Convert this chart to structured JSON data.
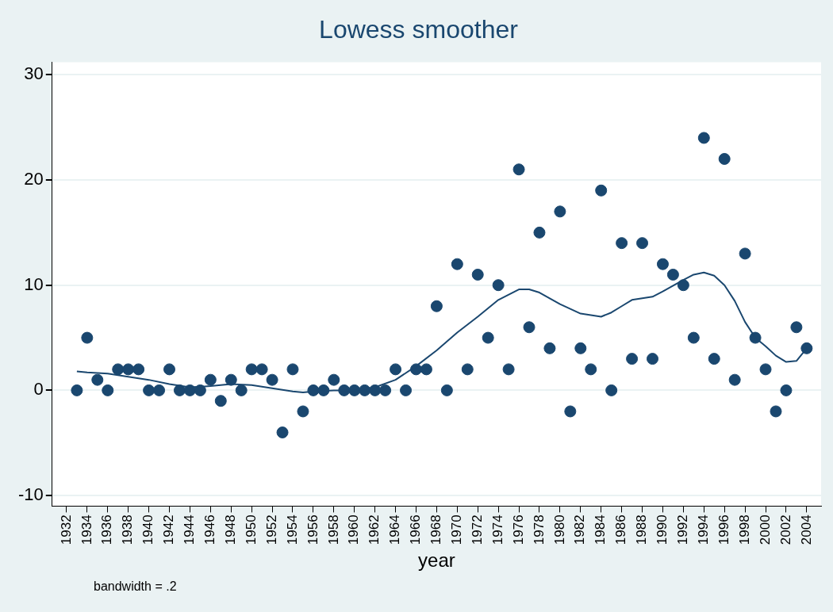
{
  "chart_data": {
    "type": "scatter",
    "title": "Lowess smoother",
    "xlabel": "year",
    "annotations": [
      "bandwidth = .2"
    ],
    "xlim": [
      1930.6,
      2005.4
    ],
    "xticks": [
      1932,
      1934,
      1936,
      1938,
      1940,
      1942,
      1944,
      1946,
      1948,
      1950,
      1952,
      1954,
      1956,
      1958,
      1960,
      1962,
      1964,
      1966,
      1968,
      1970,
      1972,
      1974,
      1976,
      1978,
      1980,
      1982,
      1984,
      1986,
      1988,
      1990,
      1992,
      1994,
      1996,
      1998,
      2000,
      2002,
      2004
    ],
    "ylim": [
      -11,
      31.2
    ],
    "yticks": [
      -10,
      0,
      10,
      20,
      30
    ],
    "grid": "y",
    "legend": false,
    "marker": "circle",
    "series": [
      {
        "color": "#1a476f",
        "x": [
          1933,
          1934,
          1935,
          1936,
          1937,
          1938,
          1939,
          1940,
          1941,
          1942,
          1943,
          1944,
          1945,
          1946,
          1947,
          1948,
          1949,
          1950,
          1951,
          1952,
          1953,
          1954,
          1955,
          1956,
          1957,
          1958,
          1959,
          1960,
          1961,
          1962,
          1963,
          1964,
          1965,
          1966,
          1967,
          1968,
          1969,
          1970,
          1971,
          1972,
          1973,
          1974,
          1975,
          1976,
          1977,
          1978,
          1979,
          1980,
          1981,
          1982,
          1983,
          1984,
          1985,
          1986,
          1987,
          1988,
          1989,
          1990,
          1991,
          1992,
          1993,
          1994,
          1995,
          1996,
          1997,
          1998,
          1999,
          2000,
          2001,
          2002,
          2003,
          2004
        ],
        "values": [
          0,
          5,
          1,
          0,
          2,
          2,
          2,
          0,
          0,
          2,
          0,
          0,
          0,
          1,
          -1,
          1,
          0,
          2,
          2,
          1,
          -4,
          2,
          -2,
          0,
          0,
          1,
          0,
          0,
          0,
          0,
          0,
          2,
          0,
          2,
          2,
          8,
          0,
          12,
          2,
          11,
          5,
          10,
          2,
          21,
          6,
          15,
          4,
          17,
          -2,
          4,
          2,
          19,
          0,
          14,
          3,
          14,
          3,
          12,
          11,
          10,
          5,
          24,
          3,
          22,
          1,
          13,
          5,
          2,
          -2,
          0,
          6,
          4
        ]
      },
      {
        "type": "line",
        "color": "#1a476f",
        "marker": "none",
        "x": [
          1933,
          1934,
          1936,
          1938,
          1940,
          1942,
          1944,
          1946,
          1948,
          1950,
          1952,
          1954,
          1955,
          1956,
          1958,
          1960,
          1962,
          1964,
          1966,
          1968,
          1970,
          1972,
          1974,
          1976,
          1977,
          1978,
          1980,
          1982,
          1984,
          1985,
          1986,
          1987,
          1989,
          1990,
          1992,
          1993,
          1994,
          1995,
          1996,
          1997,
          1998,
          1999,
          2000,
          2001,
          2002,
          2003,
          2004
        ],
        "values": [
          1.8,
          1.7,
          1.6,
          1.3,
          1.0,
          0.6,
          0.3,
          0.4,
          0.6,
          0.5,
          0.2,
          -0.1,
          -0.2,
          -0.1,
          0,
          0,
          0.3,
          1.0,
          2.3,
          3.8,
          5.5,
          7.0,
          8.6,
          9.6,
          9.6,
          9.3,
          8.2,
          7.3,
          7.0,
          7.4,
          8.0,
          8.6,
          8.9,
          9.4,
          10.5,
          11.0,
          11.2,
          10.9,
          10.0,
          8.5,
          6.5,
          5.0,
          4.2,
          3.3,
          2.7,
          2.8,
          4.0
        ]
      }
    ]
  }
}
